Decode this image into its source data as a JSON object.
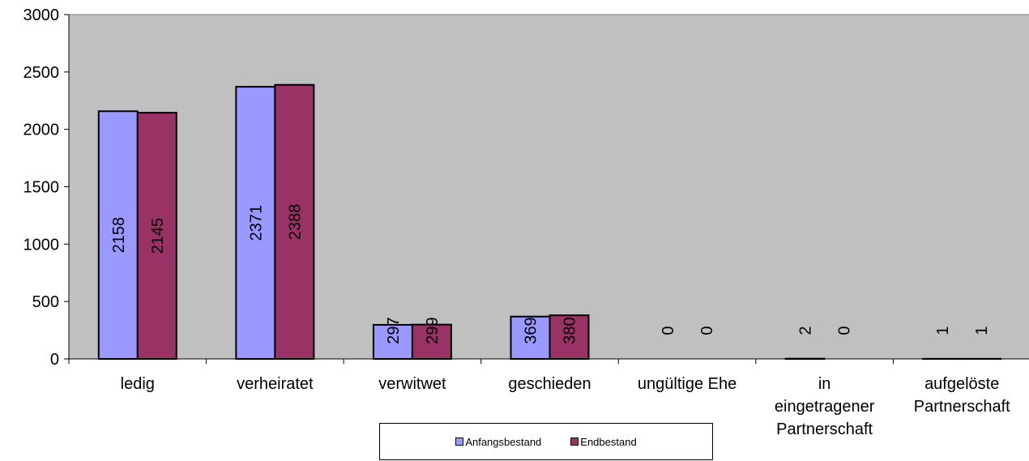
{
  "chart_data": {
    "type": "bar",
    "categories": [
      [
        "ledig"
      ],
      [
        "verheiratet"
      ],
      [
        "verwitwet"
      ],
      [
        "geschieden"
      ],
      [
        "ungültige Ehe"
      ],
      [
        "in",
        "eingetragener",
        "Partnerschaft"
      ],
      [
        "aufgelöste",
        "Partnerschaft"
      ]
    ],
    "series": [
      {
        "name": "Anfangsbestand",
        "color": "#9999ff",
        "values": [
          2158,
          2371,
          297,
          369,
          0,
          2,
          1
        ]
      },
      {
        "name": "Endbestand",
        "color": "#993366",
        "values": [
          2145,
          2388,
          299,
          380,
          0,
          0,
          1
        ]
      }
    ],
    "yticks": [
      0,
      500,
      1000,
      1500,
      2000,
      2500,
      3000
    ],
    "ylim": [
      0,
      3000
    ],
    "plot_background": "#c0c0c0",
    "grid": false,
    "data_labels": "rotated-vertical",
    "legend_position": "bottom"
  }
}
